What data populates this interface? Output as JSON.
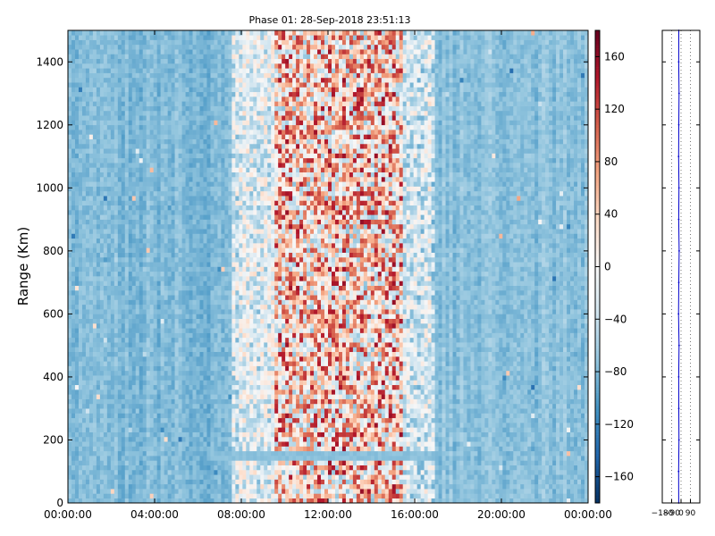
{
  "chart_data": [
    {
      "type": "heatmap",
      "title": "Phase 01: 28-Sep-2018 23:51:13",
      "xlabel": "",
      "ylabel": "Range (Km)",
      "x_ticks": [
        "00:00:00",
        "04:00:00",
        "08:00:00",
        "12:00:00",
        "16:00:00",
        "20:00:00",
        "00:00:00"
      ],
      "x_range_hours": [
        0,
        24
      ],
      "y_ticks": [
        0,
        200,
        400,
        600,
        800,
        1000,
        1200,
        1400
      ],
      "ylim": [
        0,
        1500
      ],
      "colormap": "RdBu_r",
      "colorbar": {
        "ticks": [
          -160,
          -120,
          -80,
          -40,
          0,
          40,
          80,
          120,
          160
        ],
        "range": [
          -180,
          180
        ]
      },
      "bands": [
        {
          "hours": [
            0,
            7.5
          ],
          "approx_value": -80,
          "description": "uniform"
        },
        {
          "hours": [
            7.5,
            9.5
          ],
          "approx_value": -20,
          "description": "transition"
        },
        {
          "hours": [
            9.5,
            15.5
          ],
          "approx_value": 40,
          "description": "noisy"
        },
        {
          "hours": [
            15.5,
            17
          ],
          "approx_value": -30,
          "description": "transition"
        },
        {
          "hours": [
            17,
            24
          ],
          "approx_value": -75,
          "description": "uniform"
        }
      ],
      "features": [
        {
          "range_km": 150,
          "hours": [
            6.5,
            17
          ],
          "approx_value": -75,
          "description": "horizontal stripe"
        }
      ]
    },
    {
      "type": "line",
      "x_ticks": [
        "−180",
        "−90",
        "0",
        "90"
      ],
      "xlim": [
        -180,
        180
      ],
      "ylim": [
        0,
        1500
      ],
      "grid": true,
      "series": [
        {
          "x": [
            -22,
            -23,
            -20,
            -21,
            -22,
            -19,
            -24,
            -21,
            -18,
            -22,
            -20,
            -23,
            -21,
            -19,
            -22,
            -21
          ],
          "y": [
            0,
            100,
            200,
            300,
            400,
            500,
            600,
            700,
            800,
            900,
            1000,
            1100,
            1200,
            1300,
            1400,
            1500
          ]
        }
      ]
    }
  ]
}
